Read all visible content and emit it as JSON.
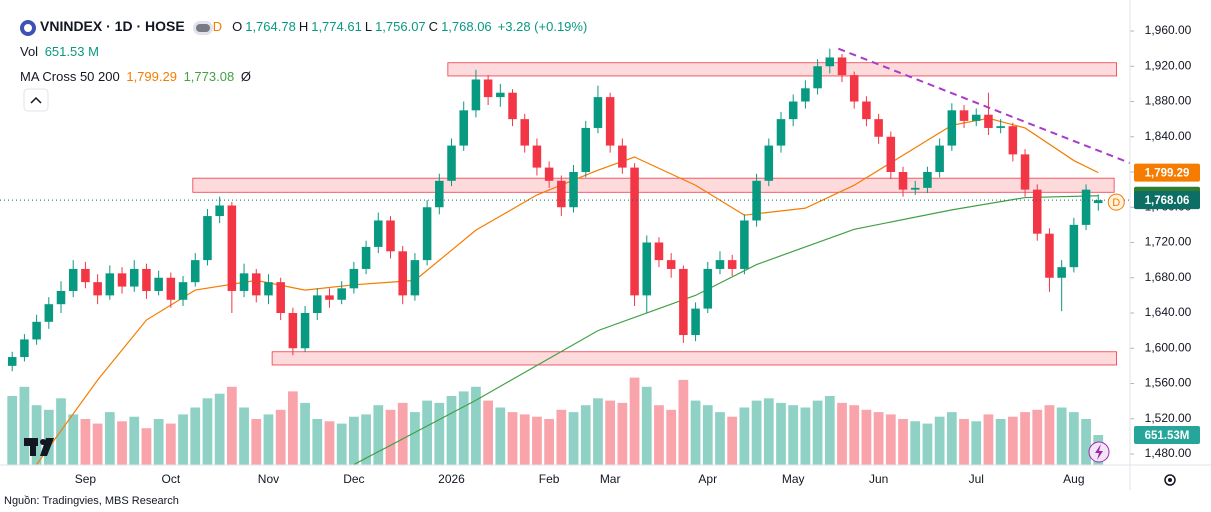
{
  "chart_data": {
    "type": "candlestick",
    "header": {
      "symbol": "VNINDEX · 1D · HOSE",
      "flag": "D",
      "ohlc": [
        {
          "label": "O",
          "value": "1,764.78"
        },
        {
          "label": "H",
          "value": "1,774.61"
        },
        {
          "label": "L",
          "value": "1,756.07"
        },
        {
          "label": "C",
          "value": "1,768.06"
        }
      ],
      "change": "+3.28 (+0.19%)",
      "vol_label": "Vol",
      "vol_value": "651.53 M",
      "vol_badge": "651.53M",
      "ma_name": "MA Cross 50 200",
      "ma_values": [
        "1,799.29",
        "1,773.08"
      ],
      "ma_extra": "Ø"
    },
    "source": "Nguồn: Tradingvies, MBS Research",
    "categories": [
      null,
      null,
      null,
      null,
      null,
      null,
      "Sep",
      null,
      null,
      null,
      null,
      null,
      null,
      "Oct",
      null,
      null,
      null,
      null,
      null,
      null,
      null,
      "Nov",
      null,
      null,
      null,
      null,
      null,
      null,
      "Dec",
      null,
      null,
      null,
      null,
      null,
      null,
      null,
      "2026",
      null,
      null,
      null,
      null,
      null,
      null,
      null,
      "Feb",
      null,
      null,
      null,
      null,
      "Mar",
      null,
      null,
      null,
      null,
      null,
      null,
      null,
      "Apr",
      null,
      null,
      null,
      null,
      null,
      null,
      "May",
      null,
      null,
      null,
      null,
      null,
      null,
      "Jun",
      null,
      null,
      null,
      null,
      null,
      null,
      null,
      "Jul",
      null,
      null,
      null,
      null,
      null,
      null,
      null,
      "Aug",
      null,
      null
    ],
    "up_color": "#089981",
    "down_color": "#f23645",
    "ohlc": [
      [
        1580,
        1596,
        1574,
        1590
      ],
      [
        1590,
        1616,
        1585,
        1610
      ],
      [
        1610,
        1638,
        1604,
        1630
      ],
      [
        1630,
        1658,
        1622,
        1650
      ],
      [
        1650,
        1676,
        1640,
        1665
      ],
      [
        1665,
        1700,
        1658,
        1690
      ],
      [
        1690,
        1698,
        1668,
        1675
      ],
      [
        1675,
        1684,
        1650,
        1660
      ],
      [
        1660,
        1694,
        1655,
        1685
      ],
      [
        1685,
        1692,
        1662,
        1670
      ],
      [
        1670,
        1700,
        1664,
        1690
      ],
      [
        1690,
        1696,
        1656,
        1665
      ],
      [
        1665,
        1688,
        1660,
        1680
      ],
      [
        1680,
        1686,
        1646,
        1655
      ],
      [
        1655,
        1682,
        1648,
        1675
      ],
      [
        1675,
        1708,
        1670,
        1700
      ],
      [
        1700,
        1758,
        1694,
        1750
      ],
      [
        1750,
        1772,
        1742,
        1762
      ],
      [
        1762,
        1766,
        1640,
        1665
      ],
      [
        1665,
        1696,
        1658,
        1685
      ],
      [
        1685,
        1690,
        1652,
        1660
      ],
      [
        1660,
        1684,
        1650,
        1675
      ],
      [
        1675,
        1680,
        1632,
        1640
      ],
      [
        1640,
        1646,
        1592,
        1600
      ],
      [
        1600,
        1648,
        1596,
        1640
      ],
      [
        1640,
        1668,
        1632,
        1660
      ],
      [
        1660,
        1668,
        1646,
        1655
      ],
      [
        1655,
        1676,
        1650,
        1668
      ],
      [
        1668,
        1698,
        1662,
        1690
      ],
      [
        1690,
        1722,
        1684,
        1715
      ],
      [
        1715,
        1754,
        1708,
        1745
      ],
      [
        1745,
        1750,
        1702,
        1710
      ],
      [
        1710,
        1716,
        1650,
        1660
      ],
      [
        1660,
        1708,
        1654,
        1700
      ],
      [
        1700,
        1768,
        1694,
        1760
      ],
      [
        1760,
        1798,
        1752,
        1790
      ],
      [
        1790,
        1838,
        1784,
        1830
      ],
      [
        1830,
        1880,
        1824,
        1870
      ],
      [
        1870,
        1916,
        1862,
        1905
      ],
      [
        1905,
        1910,
        1876,
        1885
      ],
      [
        1885,
        1900,
        1874,
        1890
      ],
      [
        1890,
        1894,
        1852,
        1860
      ],
      [
        1860,
        1866,
        1822,
        1830
      ],
      [
        1830,
        1838,
        1796,
        1805
      ],
      [
        1805,
        1812,
        1782,
        1790
      ],
      [
        1790,
        1796,
        1750,
        1760
      ],
      [
        1760,
        1808,
        1754,
        1800
      ],
      [
        1800,
        1858,
        1794,
        1850
      ],
      [
        1850,
        1898,
        1844,
        1885
      ],
      [
        1885,
        1890,
        1822,
        1830
      ],
      [
        1830,
        1838,
        1798,
        1805
      ],
      [
        1805,
        1810,
        1648,
        1660
      ],
      [
        1660,
        1728,
        1640,
        1720
      ],
      [
        1720,
        1726,
        1692,
        1700
      ],
      [
        1700,
        1708,
        1680,
        1690
      ],
      [
        1690,
        1694,
        1606,
        1615
      ],
      [
        1615,
        1652,
        1608,
        1645
      ],
      [
        1645,
        1698,
        1640,
        1690
      ],
      [
        1690,
        1710,
        1684,
        1700
      ],
      [
        1700,
        1706,
        1682,
        1690
      ],
      [
        1690,
        1752,
        1684,
        1745
      ],
      [
        1745,
        1798,
        1738,
        1790
      ],
      [
        1790,
        1838,
        1784,
        1830
      ],
      [
        1830,
        1868,
        1822,
        1860
      ],
      [
        1860,
        1888,
        1852,
        1880
      ],
      [
        1880,
        1904,
        1872,
        1895
      ],
      [
        1895,
        1928,
        1888,
        1920
      ],
      [
        1920,
        1940,
        1912,
        1930
      ],
      [
        1930,
        1934,
        1902,
        1910
      ],
      [
        1910,
        1914,
        1872,
        1880
      ],
      [
        1880,
        1886,
        1852,
        1860
      ],
      [
        1860,
        1866,
        1832,
        1840
      ],
      [
        1840,
        1846,
        1792,
        1800
      ],
      [
        1800,
        1806,
        1772,
        1780
      ],
      [
        1780,
        1790,
        1774,
        1782
      ],
      [
        1782,
        1806,
        1776,
        1800
      ],
      [
        1800,
        1838,
        1794,
        1830
      ],
      [
        1830,
        1878,
        1824,
        1870
      ],
      [
        1870,
        1876,
        1850,
        1858
      ],
      [
        1858,
        1872,
        1852,
        1865
      ],
      [
        1865,
        1890,
        1842,
        1850
      ],
      [
        1850,
        1860,
        1844,
        1852
      ],
      [
        1852,
        1856,
        1812,
        1820
      ],
      [
        1820,
        1826,
        1772,
        1780
      ],
      [
        1780,
        1786,
        1722,
        1730
      ],
      [
        1730,
        1736,
        1664,
        1680
      ],
      [
        1680,
        1700,
        1642,
        1692
      ],
      [
        1692,
        1748,
        1686,
        1740
      ],
      [
        1740,
        1786,
        1734,
        1780
      ],
      [
        1764.78,
        1774.61,
        1756.07,
        1768.06
      ]
    ],
    "volume": [
      1500,
      1700,
      1300,
      1200,
      1450,
      1100,
      1000,
      900,
      1150,
      950,
      1050,
      800,
      1000,
      900,
      1100,
      1250,
      1450,
      1550,
      1700,
      1250,
      1000,
      1100,
      1200,
      1600,
      1350,
      1000,
      950,
      900,
      1050,
      1100,
      1300,
      1200,
      1350,
      1150,
      1400,
      1350,
      1500,
      1600,
      1700,
      1400,
      1250,
      1150,
      1100,
      1050,
      1000,
      1200,
      1150,
      1300,
      1450,
      1400,
      1350,
      1900,
      1700,
      1300,
      1200,
      1850,
      1400,
      1300,
      1150,
      1050,
      1250,
      1400,
      1450,
      1350,
      1300,
      1250,
      1400,
      1500,
      1350,
      1300,
      1200,
      1150,
      1100,
      1000,
      950,
      900,
      1050,
      1150,
      1000,
      950,
      1100,
      1000,
      1050,
      1150,
      1200,
      1300,
      1250,
      1150,
      1000,
      651.53
    ],
    "vlim": [
      0,
      2500
    ],
    "ma": [
      {
        "name": "MA 50",
        "color": "#f57c00",
        "x": [
          2,
          7,
          11,
          15,
          20,
          24,
          28,
          33,
          38,
          43,
          48,
          51,
          56,
          60,
          65,
          69,
          73,
          77,
          80,
          83,
          87,
          89
        ],
        "values": [
          1468,
          1564,
          1632,
          1666,
          1677,
          1666,
          1672,
          1677,
          1734,
          1774,
          1802,
          1817,
          1785,
          1751,
          1759,
          1785,
          1819,
          1853,
          1861,
          1850,
          1813,
          1799.29
        ]
      },
      {
        "name": "MA 200",
        "color": "#43a047",
        "x": [
          28,
          38,
          48,
          56,
          61,
          69,
          77,
          83,
          89
        ],
        "values": [
          1468,
          1541,
          1620,
          1660,
          1695,
          1735,
          1757,
          1771,
          1773.08
        ]
      }
    ],
    "zones": [
      {
        "x": [
          35.7,
          90.5
        ],
        "y": [
          1909,
          1924
        ]
      },
      {
        "x": [
          14.8,
          90.3
        ],
        "y": [
          1777,
          1793
        ]
      },
      {
        "x": [
          21.3,
          90.5
        ],
        "y": [
          1581,
          1596
        ]
      }
    ],
    "trendline": {
      "color": "#a83cc8",
      "x": [
        67.7,
        92
      ],
      "y": [
        1940,
        1808
      ]
    },
    "xlim": [
      -1,
      91.6
    ],
    "ylim": [
      1467.5,
      1995.2
    ],
    "yticks": [
      {
        "value": 1960,
        "label": "1,960.00"
      },
      {
        "value": 1920,
        "label": "1,920.00"
      },
      {
        "value": 1880,
        "label": "1,880.00"
      },
      {
        "value": 1840,
        "label": "1,840.00"
      },
      {
        "value": 1800,
        "label": "1,800.00"
      },
      {
        "value": 1760,
        "label": "1,760.00"
      },
      {
        "value": 1720,
        "label": "1,720.00"
      },
      {
        "value": 1680,
        "label": "1,680.00"
      },
      {
        "value": 1640,
        "label": "1,640.00"
      },
      {
        "value": 1600,
        "label": "1,600.00"
      },
      {
        "value": 1560,
        "label": "1,560.00"
      },
      {
        "value": 1520,
        "label": "1,520.00"
      },
      {
        "value": 1480,
        "label": "1,480.00"
      }
    ]
  }
}
